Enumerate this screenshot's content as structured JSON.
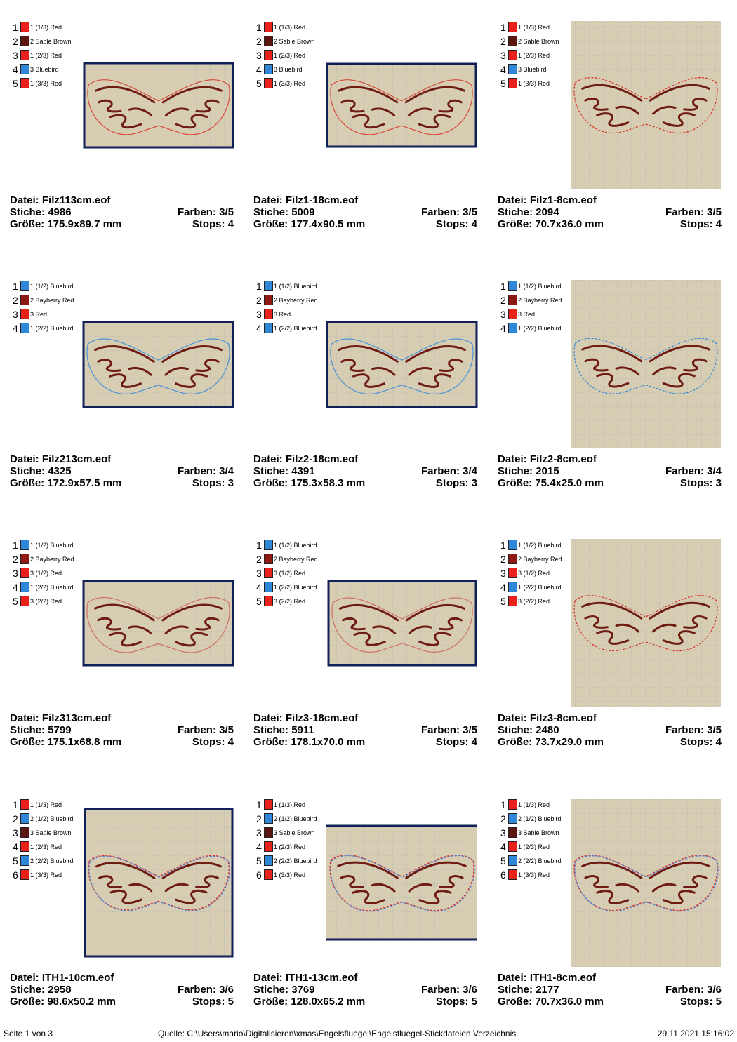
{
  "labels": {
    "file": "Datei:",
    "stitches": "Stiche:",
    "size": "Größe:",
    "colors": "Farben:",
    "stops": "Stops:"
  },
  "cells": [
    {
      "file": "Filz113cm.eof",
      "stitches": 4986,
      "size": "175.9x89.7 mm",
      "colors": "3/5",
      "stops": 4,
      "threads": [
        {
          "number": 1,
          "color": "#e8211d",
          "name": "1 (1/3) Red"
        },
        {
          "number": 2,
          "color": "#5a1610",
          "name": "2 Sable Brown"
        },
        {
          "number": 3,
          "color": "#e8211d",
          "name": "1 (2/3) Red"
        },
        {
          "number": 4,
          "color": "#2f87d8",
          "name": "3 Bluebird"
        },
        {
          "number": 5,
          "color": "#e8211d",
          "name": "1 (3/3) Red"
        }
      ]
    },
    {
      "file": "Filz1-18cm.eof",
      "stitches": 5009,
      "size": "177.4x90.5 mm",
      "colors": "3/5",
      "stops": 4,
      "threads": [
        {
          "number": 1,
          "color": "#e8211d",
          "name": "1 (1/3) Red"
        },
        {
          "number": 2,
          "color": "#5a1610",
          "name": "2 Sable Brown"
        },
        {
          "number": 3,
          "color": "#e8211d",
          "name": "1 (2/3) Red"
        },
        {
          "number": 4,
          "color": "#2f87d8",
          "name": "3 Bluebird"
        },
        {
          "number": 5,
          "color": "#e8211d",
          "name": "1 (3/3) Red"
        }
      ]
    },
    {
      "file": "Filz1-8cm.eof",
      "stitches": 2094,
      "size": "70.7x36.0 mm",
      "colors": "3/5",
      "stops": 4,
      "threads": [
        {
          "number": 1,
          "color": "#e8211d",
          "name": "1 (1/3) Red"
        },
        {
          "number": 2,
          "color": "#5a1610",
          "name": "2 Sable Brown"
        },
        {
          "number": 3,
          "color": "#e8211d",
          "name": "1 (2/3) Red"
        },
        {
          "number": 4,
          "color": "#2f87d8",
          "name": "3 Bluebird"
        },
        {
          "number": 5,
          "color": "#e8211d",
          "name": "1 (3/3) Red"
        }
      ]
    },
    {
      "file": "Filz213cm.eof",
      "stitches": 4325,
      "size": "172.9x57.5 mm",
      "colors": "3/4",
      "stops": 3,
      "threads": [
        {
          "number": 1,
          "color": "#2f87d8",
          "name": "1 (1/2) Bluebird"
        },
        {
          "number": 2,
          "color": "#8e1812",
          "name": "2 Bayberry Red"
        },
        {
          "number": 3,
          "color": "#e8211d",
          "name": "3 Red"
        },
        {
          "number": 4,
          "color": "#2f87d8",
          "name": "1 (2/2) Bluebird"
        }
      ]
    },
    {
      "file": "Filz2-18cm.eof",
      "stitches": 4391,
      "size": "175.3x58.3 mm",
      "colors": "3/4",
      "stops": 3,
      "threads": [
        {
          "number": 1,
          "color": "#2f87d8",
          "name": "1 (1/2) Bluebird"
        },
        {
          "number": 2,
          "color": "#8e1812",
          "name": "2 Bayberry Red"
        },
        {
          "number": 3,
          "color": "#e8211d",
          "name": "3 Red"
        },
        {
          "number": 4,
          "color": "#2f87d8",
          "name": "1 (2/2) Bluebird"
        }
      ]
    },
    {
      "file": "Filz2-8cm.eof",
      "stitches": 2015,
      "size": "75.4x25.0 mm",
      "colors": "3/4",
      "stops": 3,
      "threads": [
        {
          "number": 1,
          "color": "#2f87d8",
          "name": "1 (1/2) Bluebird"
        },
        {
          "number": 2,
          "color": "#8e1812",
          "name": "2 Bayberry Red"
        },
        {
          "number": 3,
          "color": "#e8211d",
          "name": "3 Red"
        },
        {
          "number": 4,
          "color": "#2f87d8",
          "name": "1 (2/2) Bluebird"
        }
      ]
    },
    {
      "file": "Filz313cm.eof",
      "stitches": 5799,
      "size": "175.1x68.8 mm",
      "colors": "3/5",
      "stops": 4,
      "threads": [
        {
          "number": 1,
          "color": "#2f87d8",
          "name": "1 (1/2) Bluebird"
        },
        {
          "number": 2,
          "color": "#8e1812",
          "name": "2 Bayberry Red"
        },
        {
          "number": 3,
          "color": "#e8211d",
          "name": "3 (1/2) Red"
        },
        {
          "number": 4,
          "color": "#2f87d8",
          "name": "1 (2/2) Bluebird"
        },
        {
          "number": 5,
          "color": "#e8211d",
          "name": "3 (2/2) Red"
        }
      ]
    },
    {
      "file": "Filz3-18cm.eof",
      "stitches": 5911,
      "size": "178.1x70.0 mm",
      "colors": "3/5",
      "stops": 4,
      "threads": [
        {
          "number": 1,
          "color": "#2f87d8",
          "name": "1 (1/2) Bluebird"
        },
        {
          "number": 2,
          "color": "#8e1812",
          "name": "2 Bayberry Red"
        },
        {
          "number": 3,
          "color": "#e8211d",
          "name": "3 (1/2) Red"
        },
        {
          "number": 4,
          "color": "#2f87d8",
          "name": "1 (2/2) Bluebird"
        },
        {
          "number": 5,
          "color": "#e8211d",
          "name": "3 (2/2) Red"
        }
      ]
    },
    {
      "file": "Filz3-8cm.eof",
      "stitches": 2480,
      "size": "73.7x29.0 mm",
      "colors": "3/5",
      "stops": 4,
      "threads": [
        {
          "number": 1,
          "color": "#2f87d8",
          "name": "1 (1/2) Bluebird"
        },
        {
          "number": 2,
          "color": "#8e1812",
          "name": "2 Bayberry Red"
        },
        {
          "number": 3,
          "color": "#e8211d",
          "name": "3 (1/2) Red"
        },
        {
          "number": 4,
          "color": "#2f87d8",
          "name": "1 (2/2) Bluebird"
        },
        {
          "number": 5,
          "color": "#e8211d",
          "name": "3 (2/2) Red"
        }
      ]
    },
    {
      "file": "ITH1-10cm.eof",
      "stitches": 2958,
      "size": "98.6x50.2 mm",
      "colors": "3/6",
      "stops": 5,
      "threads": [
        {
          "number": 1,
          "color": "#e8211d",
          "name": "1 (1/3) Red"
        },
        {
          "number": 2,
          "color": "#2f87d8",
          "name": "2 (1/2) Bluebird"
        },
        {
          "number": 3,
          "color": "#5a1610",
          "name": "3 Sable Brown"
        },
        {
          "number": 4,
          "color": "#e8211d",
          "name": "1 (2/3) Red"
        },
        {
          "number": 5,
          "color": "#2f87d8",
          "name": "2 (2/2) Bluebird"
        },
        {
          "number": 6,
          "color": "#e8211d",
          "name": "1 (3/3) Red"
        }
      ]
    },
    {
      "file": "ITH1-13cm.eof",
      "stitches": 3769,
      "size": "128.0x65.2 mm",
      "colors": "3/6",
      "stops": 5,
      "threads": [
        {
          "number": 1,
          "color": "#e8211d",
          "name": "1 (1/3) Red"
        },
        {
          "number": 2,
          "color": "#2f87d8",
          "name": "2 (1/2) Bluebird"
        },
        {
          "number": 3,
          "color": "#5a1610",
          "name": "3 Sable Brown"
        },
        {
          "number": 4,
          "color": "#e8211d",
          "name": "1 (2/3) Red"
        },
        {
          "number": 5,
          "color": "#2f87d8",
          "name": "2 (2/2) Bluebird"
        },
        {
          "number": 6,
          "color": "#e8211d",
          "name": "1 (3/3) Red"
        }
      ]
    },
    {
      "file": "ITH1-8cm.eof",
      "stitches": 2177,
      "size": "70.7x36.0 mm",
      "colors": "3/6",
      "stops": 5,
      "threads": [
        {
          "number": 1,
          "color": "#e8211d",
          "name": "1 (1/3) Red"
        },
        {
          "number": 2,
          "color": "#2f87d8",
          "name": "2 (1/2) Bluebird"
        },
        {
          "number": 3,
          "color": "#5a1610",
          "name": "3 Sable Brown"
        },
        {
          "number": 4,
          "color": "#e8211d",
          "name": "1 (2/3) Red"
        },
        {
          "number": 5,
          "color": "#2f87d8",
          "name": "2 (2/2) Bluebird"
        },
        {
          "number": 6,
          "color": "#e8211d",
          "name": "1 (3/3) Red"
        }
      ]
    }
  ],
  "footer": {
    "page": "Seite 1 von 3",
    "source": "Quelle: C:\\Users\\mario\\Digitalisieren\\xmas\\Engelsfluegel\\Engelsfluegel-Stickdateien Verzeichnis",
    "date": "29.11.2021 15:16:02"
  }
}
